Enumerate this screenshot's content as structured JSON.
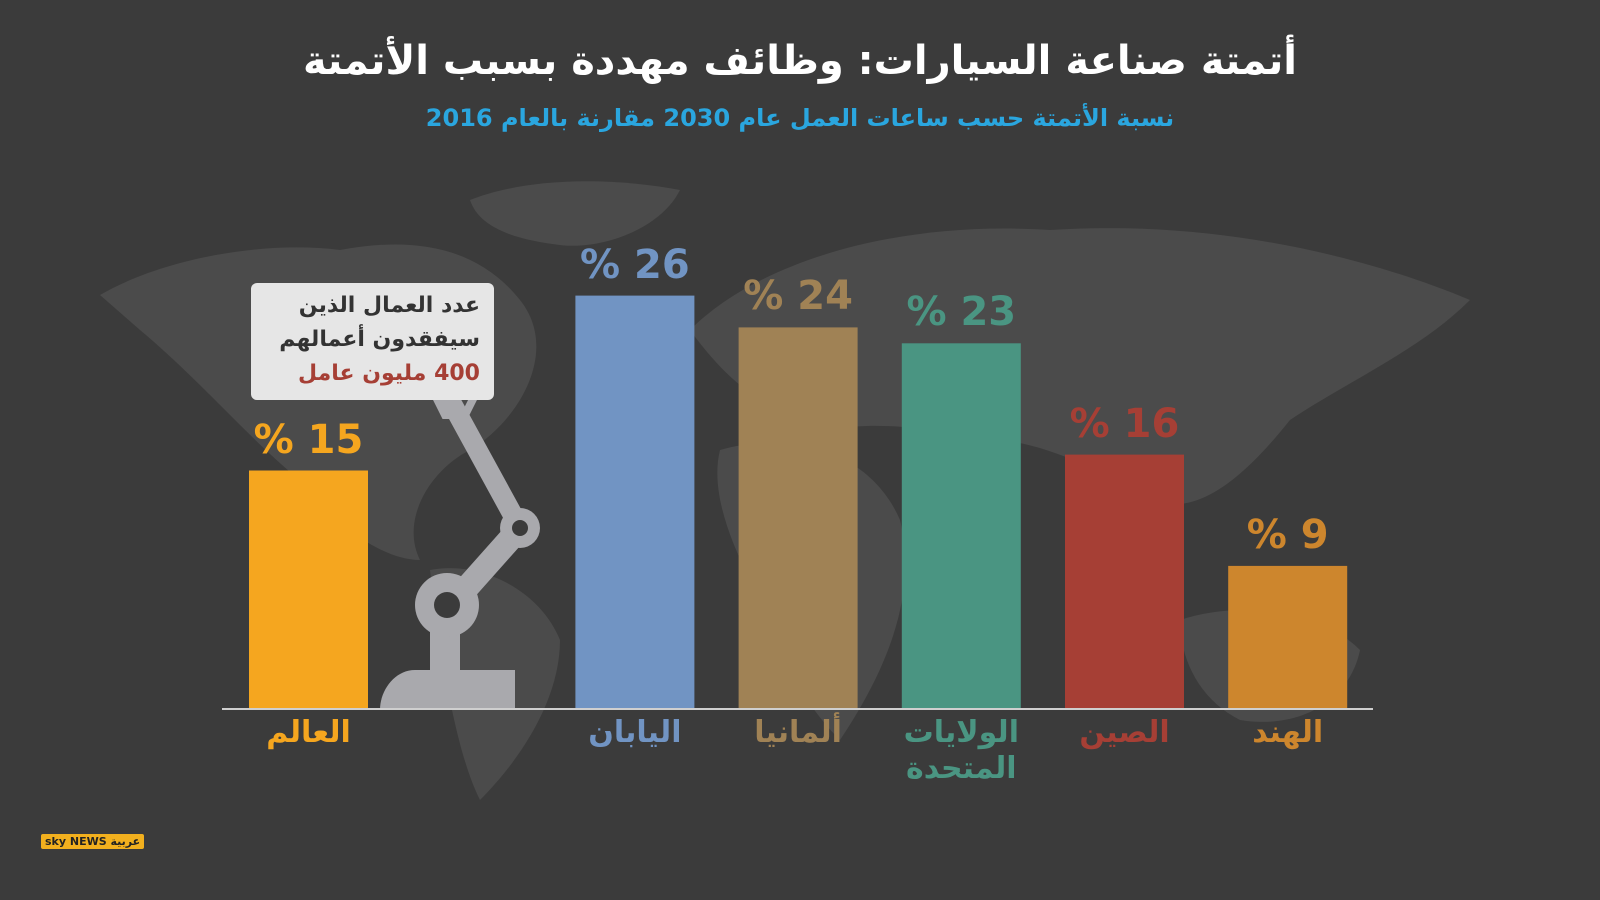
{
  "title": "أتمتة صناعة السيارات: وظائف مهددة بسبب الأتمتة",
  "subtitle": "نسبة الأتمتة حسب ساعات العمل عام 2030 مقارنة بالعام 2016",
  "logo": "sky NEWS عربية",
  "chart_data": {
    "type": "bar",
    "categories": [
      "العالم",
      "اليابان",
      "ألمانيا",
      "الولايات المتحدة",
      "الصين",
      "الهند"
    ],
    "values": [
      15,
      26,
      24,
      23,
      16,
      9
    ],
    "value_labels": [
      "% 15",
      "% 26",
      "% 24",
      "% 23",
      "% 16",
      "% 9"
    ],
    "colors": [
      "#f5a61f",
      "#7194c3",
      "#a08255",
      "#4a9582",
      "#a63f35",
      "#cd862d"
    ],
    "ylim": [
      0,
      30
    ],
    "annotation": [
      "عدد العمال الذين",
      "سيفقدون أعمالهم",
      "400 مليون عامل"
    ]
  }
}
